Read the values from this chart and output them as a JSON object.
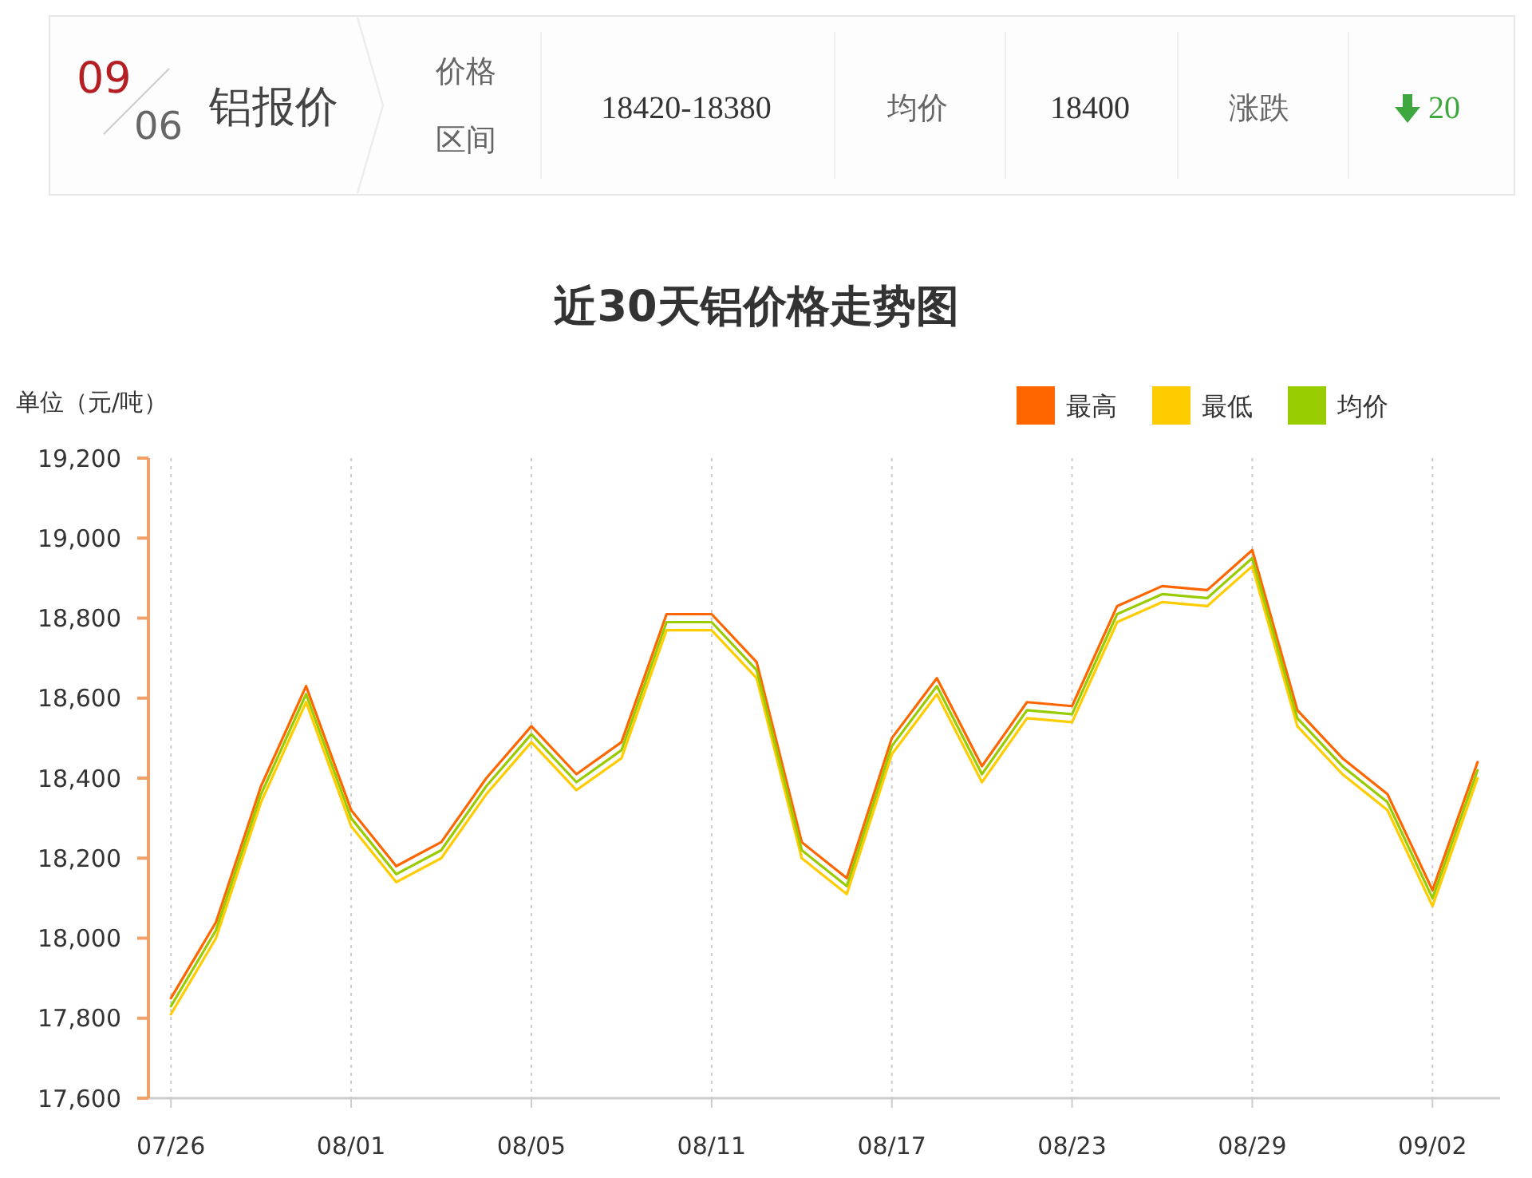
{
  "chart_data": [
    {
      "type": "other",
      "annotations": [
        "09",
        "06",
        "铝报价",
        "价格",
        "区间",
        "18420-18380",
        "均价",
        "18400",
        "涨跌",
        "20"
      ]
    },
    {
      "type": "line",
      "title": "近30天铝价格走势图",
      "ylabel": "单位（元/吨）",
      "categories": [
        "07/26",
        null,
        null,
        null,
        "08/01",
        null,
        null,
        null,
        "08/05",
        null,
        null,
        null,
        "08/11",
        null,
        null,
        null,
        "08/17",
        null,
        null,
        null,
        "08/23",
        null,
        null,
        null,
        "08/29",
        null,
        null,
        null,
        "09/02",
        null
      ],
      "series": [
        {
          "name": "最高",
          "color": "#ff6600",
          "values": [
            17850,
            18040,
            18380,
            18630,
            18320,
            18180,
            18240,
            18400,
            18530,
            18410,
            18490,
            18810,
            18810,
            18690,
            18240,
            18150,
            18500,
            18650,
            18430,
            18590,
            18580,
            18830,
            18880,
            18870,
            18970,
            18570,
            18450,
            18360,
            18120,
            18440
          ]
        },
        {
          "name": "最低",
          "color": "#ffcc00",
          "values": [
            17810,
            18000,
            18340,
            18590,
            18280,
            18140,
            18200,
            18360,
            18490,
            18370,
            18450,
            18770,
            18770,
            18650,
            18200,
            18110,
            18460,
            18610,
            18390,
            18550,
            18540,
            18790,
            18840,
            18830,
            18930,
            18530,
            18410,
            18320,
            18080,
            18400
          ]
        },
        {
          "name": "均价",
          "color": "#99cc00",
          "values": [
            17830,
            18020,
            18360,
            18610,
            18300,
            18160,
            18220,
            18380,
            18510,
            18390,
            18470,
            18790,
            18790,
            18670,
            18220,
            18130,
            18480,
            18630,
            18410,
            18570,
            18560,
            18810,
            18860,
            18850,
            18950,
            18550,
            18430,
            18340,
            18100,
            18420
          ]
        }
      ],
      "ylim": [
        17600,
        19200
      ],
      "yticks": [
        {
          "value": 17600,
          "label": "17,600"
        },
        {
          "value": 17800,
          "label": "17,800"
        },
        {
          "value": 18000,
          "label": "18,000"
        },
        {
          "value": 18200,
          "label": "18,200"
        },
        {
          "value": 18400,
          "label": "18,400"
        },
        {
          "value": 18600,
          "label": "18,600"
        },
        {
          "value": 18800,
          "label": "18,800"
        },
        {
          "value": 19000,
          "label": "19,000"
        },
        {
          "value": 19200,
          "label": "19,200"
        }
      ],
      "grid": "x",
      "legend": "top right"
    }
  ]
}
